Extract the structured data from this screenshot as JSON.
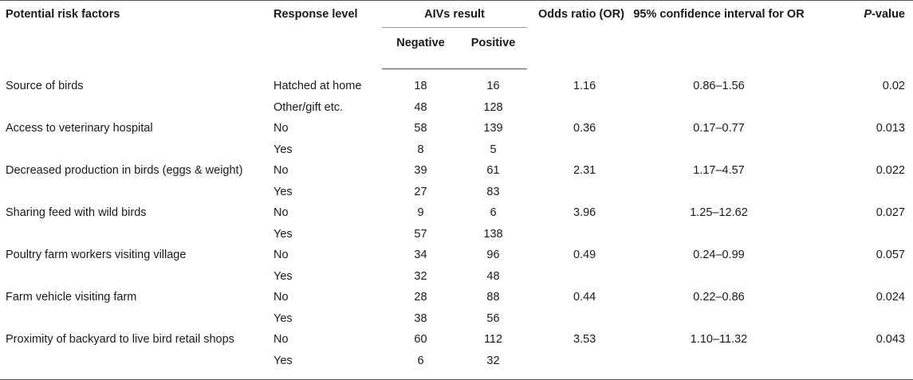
{
  "headers": {
    "factor": "Potential risk factors",
    "response": "Response level",
    "aivs": "AIVs result",
    "negative": "Negative",
    "positive": "Positive",
    "or": "Odds ratio (OR)",
    "ci": "95% confidence interval for OR",
    "p_italic": "P",
    "p_rest": "-value"
  },
  "rows": [
    {
      "factor": "Source of birds",
      "resp1": "Hatched at home",
      "neg1": "18",
      "pos1": "16",
      "resp2": "Other/gift etc.",
      "neg2": "48",
      "pos2": "128",
      "or": "1.16",
      "ci": "0.86–1.56",
      "p": "0.02"
    },
    {
      "factor": "Access to veterinary hospital",
      "resp1": "No",
      "neg1": "58",
      "pos1": "139",
      "resp2": "Yes",
      "neg2": "8",
      "pos2": "5",
      "or": "0.36",
      "ci": "0.17–0.77",
      "p": "0.013"
    },
    {
      "factor": "Decreased production in birds (eggs & weight)",
      "resp1": "No",
      "neg1": "39",
      "pos1": "61",
      "resp2": "Yes",
      "neg2": "27",
      "pos2": "83",
      "or": "2.31",
      "ci": "1.17–4.57",
      "p": "0.022"
    },
    {
      "factor": "Sharing feed with wild birds",
      "resp1": "No",
      "neg1": "9",
      "pos1": "6",
      "resp2": "Yes",
      "neg2": "57",
      "pos2": "138",
      "or": "3.96",
      "ci": "1.25–12.62",
      "p": "0.027"
    },
    {
      "factor": "Poultry farm workers visiting village",
      "resp1": "No",
      "neg1": "34",
      "pos1": "96",
      "resp2": "Yes",
      "neg2": "32",
      "pos2": "48",
      "or": "0.49",
      "ci": "0.24–0.99",
      "p": "0.057"
    },
    {
      "factor": "Farm vehicle visiting farm",
      "resp1": "No",
      "neg1": "28",
      "pos1": "88",
      "resp2": "Yes",
      "neg2": "38",
      "pos2": "56",
      "or": "0.44",
      "ci": "0.22–0.86",
      "p": "0.024"
    },
    {
      "factor": "Proximity of backyard to live bird retail shops",
      "resp1": "No",
      "neg1": "60",
      "pos1": "112",
      "resp2": "Yes",
      "neg2": "6",
      "pos2": "32",
      "or": "3.53",
      "ci": "1.10–11.32",
      "p": "0.043"
    }
  ]
}
